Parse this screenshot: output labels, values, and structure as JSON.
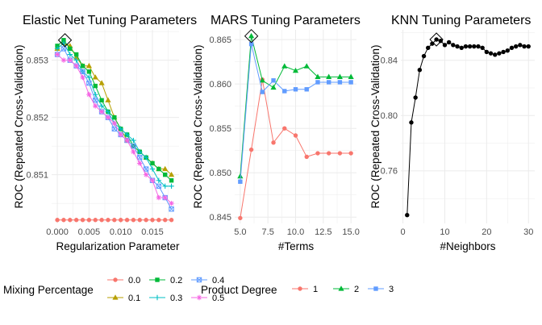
{
  "figure": {
    "legends": [
      {
        "title": "Mixing Percentage",
        "entries": [
          "0.0",
          "0.1",
          "0.2",
          "0.3",
          "0.4",
          "0.5"
        ]
      },
      {
        "title": "Product Degree",
        "entries": [
          "1",
          "2",
          "3"
        ]
      }
    ]
  },
  "colors": {
    "mix": [
      "#F8766D",
      "#B79F00",
      "#00BA38",
      "#00BFC4",
      "#619CFF",
      "#F564E3"
    ],
    "degree": [
      "#F8766D",
      "#00BA38",
      "#619CFF"
    ],
    "knn": "#000000",
    "grid": "#ebebeb"
  },
  "chart_data": [
    {
      "type": "line",
      "title": "Elastic Net Tuning Parameters",
      "xlabel": "Regularization Parameter",
      "ylabel": "ROC (Repeated Cross-Validation)",
      "xlim": [
        -0.0009,
        0.0192
      ],
      "ylim": [
        0.85015,
        0.85353
      ],
      "x_ticks": [
        0.0,
        0.005,
        0.01,
        0.015
      ],
      "x_tick_labels": [
        "0.000",
        "0.005",
        "0.010",
        "0.015"
      ],
      "y_ticks": [
        0.851,
        0.852,
        0.853
      ],
      "y_tick_labels": [
        "0.851",
        "0.852",
        "0.853"
      ],
      "grid": true,
      "legend": "bottom-left",
      "best": {
        "x": 0.0012,
        "y": 0.85335
      },
      "series": [
        {
          "name": "0.0",
          "marker": "circle",
          "x": [
            0.0,
            0.001,
            0.002,
            0.003,
            0.004,
            0.005,
            0.006,
            0.007,
            0.008,
            0.009,
            0.01,
            0.011,
            0.012,
            0.013,
            0.014,
            0.015,
            0.016,
            0.017,
            0.018
          ],
          "y": [
            0.85021,
            0.85021,
            0.85021,
            0.85021,
            0.85021,
            0.85021,
            0.85021,
            0.85021,
            0.85021,
            0.85021,
            0.85021,
            0.85021,
            0.85021,
            0.85021,
            0.85021,
            0.85021,
            0.85021,
            0.85021,
            0.85021
          ]
        },
        {
          "name": "0.1",
          "marker": "triangle",
          "x": [
            0.0,
            0.001,
            0.002,
            0.003,
            0.004,
            0.005,
            0.006,
            0.007,
            0.008,
            0.009,
            0.01,
            0.011,
            0.012,
            0.013,
            0.014,
            0.015,
            0.016,
            0.017,
            0.018
          ],
          "y": [
            0.8532,
            0.8533,
            0.85325,
            0.85305,
            0.8529,
            0.8529,
            0.8527,
            0.8526,
            0.8523,
            0.852,
            0.8518,
            0.8516,
            0.8515,
            0.8514,
            0.8513,
            0.8512,
            0.8511,
            0.8511,
            0.851
          ]
        },
        {
          "name": "0.2",
          "marker": "square",
          "x": [
            0.0,
            0.001,
            0.002,
            0.003,
            0.004,
            0.005,
            0.006,
            0.007,
            0.008,
            0.009,
            0.01,
            0.011,
            0.012,
            0.013,
            0.014,
            0.015,
            0.016,
            0.017,
            0.018
          ],
          "y": [
            0.85325,
            0.85335,
            0.8532,
            0.8531,
            0.8529,
            0.8528,
            0.85255,
            0.8523,
            0.8521,
            0.852,
            0.8518,
            0.8517,
            0.8515,
            0.8514,
            0.8513,
            0.8512,
            0.8511,
            0.851,
            0.8509
          ]
        },
        {
          "name": "0.3",
          "marker": "plus",
          "x": [
            0.0,
            0.001,
            0.002,
            0.003,
            0.004,
            0.005,
            0.006,
            0.007,
            0.008,
            0.009,
            0.01,
            0.011,
            0.012,
            0.013,
            0.014,
            0.015,
            0.016,
            0.017,
            0.018
          ],
          "y": [
            0.8532,
            0.8533,
            0.8531,
            0.853,
            0.8528,
            0.8527,
            0.8524,
            0.8522,
            0.8521,
            0.8519,
            0.8518,
            0.8517,
            0.8516,
            0.8514,
            0.8513,
            0.8511,
            0.8509,
            0.8508,
            0.8508
          ]
        },
        {
          "name": "0.4",
          "marker": "boxcross",
          "x": [
            0.0,
            0.001,
            0.002,
            0.003,
            0.004,
            0.005,
            0.006,
            0.007,
            0.008,
            0.009,
            0.01,
            0.011,
            0.012,
            0.013,
            0.014,
            0.015,
            0.016,
            0.017,
            0.018
          ],
          "y": [
            0.8531,
            0.8532,
            0.853,
            0.8529,
            0.8528,
            0.8526,
            0.8523,
            0.8521,
            0.852,
            0.8518,
            0.8517,
            0.8516,
            0.8515,
            0.8513,
            0.8511,
            0.8509,
            0.8508,
            0.8506,
            0.8504
          ]
        },
        {
          "name": "0.5",
          "marker": "asterisk",
          "x": [
            0.0,
            0.001,
            0.002,
            0.003,
            0.004,
            0.005,
            0.006,
            0.007,
            0.008,
            0.009,
            0.01,
            0.011,
            0.012,
            0.013,
            0.014,
            0.015,
            0.016,
            0.017,
            0.018
          ],
          "y": [
            0.8531,
            0.853,
            0.853,
            0.8529,
            0.8527,
            0.8524,
            0.8522,
            0.8521,
            0.852,
            0.8519,
            0.8517,
            0.8516,
            0.8514,
            0.8512,
            0.851,
            0.8509,
            0.8506,
            0.8506,
            0.8505
          ]
        }
      ]
    },
    {
      "type": "line",
      "title": "MARS Tuning Parameters",
      "xlabel": "#Terms",
      "ylabel": "ROC (Repeated Cross-Validation)",
      "xlim": [
        4.5,
        15.5
      ],
      "ylim": [
        0.8443,
        0.8661
      ],
      "x_ticks": [
        5.0,
        7.5,
        10.0,
        12.5,
        15.0
      ],
      "x_tick_labels": [
        "5.0",
        "7.5",
        "10.0",
        "12.5",
        "15.0"
      ],
      "y_ticks": [
        0.845,
        0.85,
        0.855,
        0.86,
        0.865
      ],
      "y_tick_labels": [
        "0.845",
        "0.850",
        "0.855",
        "0.860",
        "0.865"
      ],
      "grid": true,
      "legend": "bottom",
      "best": {
        "x": 6,
        "y": 0.8654
      },
      "series": [
        {
          "name": "1",
          "marker": "circle",
          "x": [
            5,
            6,
            7,
            8,
            9,
            10,
            11,
            12,
            13,
            14,
            15
          ],
          "y": [
            0.8449,
            0.8526,
            0.8605,
            0.8534,
            0.855,
            0.8542,
            0.8518,
            0.8522,
            0.8522,
            0.8522,
            0.8522
          ]
        },
        {
          "name": "2",
          "marker": "triangle",
          "x": [
            5,
            6,
            7,
            8,
            9,
            10,
            11,
            12,
            13,
            14,
            15
          ],
          "y": [
            0.8496,
            0.8654,
            0.8604,
            0.8596,
            0.862,
            0.8615,
            0.862,
            0.8608,
            0.8608,
            0.8608,
            0.8608
          ]
        },
        {
          "name": "3",
          "marker": "square",
          "x": [
            5,
            6,
            7,
            8,
            9,
            10,
            11,
            12,
            13,
            14,
            15
          ],
          "y": [
            0.849,
            0.8645,
            0.8591,
            0.8604,
            0.8592,
            0.8594,
            0.8594,
            0.8602,
            0.8602,
            0.8602,
            0.8602
          ]
        }
      ]
    },
    {
      "type": "line",
      "title": "KNN Tuning Parameters",
      "xlabel": "#Neighbors",
      "ylabel": "ROC (Repeated Cross-Validation)",
      "xlim": [
        -0.5,
        31.5
      ],
      "ylim": [
        0.722,
        0.862
      ],
      "x_ticks": [
        0,
        10,
        20,
        30
      ],
      "x_tick_labels": [
        "0",
        "10",
        "20",
        "30"
      ],
      "y_ticks": [
        0.76,
        0.8,
        0.84
      ],
      "y_tick_labels": [
        "0.76",
        "0.80",
        "0.84"
      ],
      "grid": true,
      "best": {
        "x": 8,
        "y": 0.855
      },
      "series": [
        {
          "marker": "circle",
          "x": [
            1,
            2,
            3,
            4,
            5,
            6,
            7,
            8,
            9,
            10,
            11,
            12,
            13,
            14,
            15,
            16,
            17,
            18,
            19,
            20,
            21,
            22,
            23,
            24,
            25,
            26,
            27,
            28,
            29,
            30
          ],
          "y": [
            0.728,
            0.795,
            0.813,
            0.833,
            0.843,
            0.849,
            0.852,
            0.855,
            0.854,
            0.851,
            0.853,
            0.851,
            0.85,
            0.849,
            0.85,
            0.85,
            0.85,
            0.85,
            0.849,
            0.846,
            0.845,
            0.844,
            0.845,
            0.846,
            0.847,
            0.849,
            0.85,
            0.851,
            0.85,
            0.85
          ]
        }
      ]
    }
  ]
}
